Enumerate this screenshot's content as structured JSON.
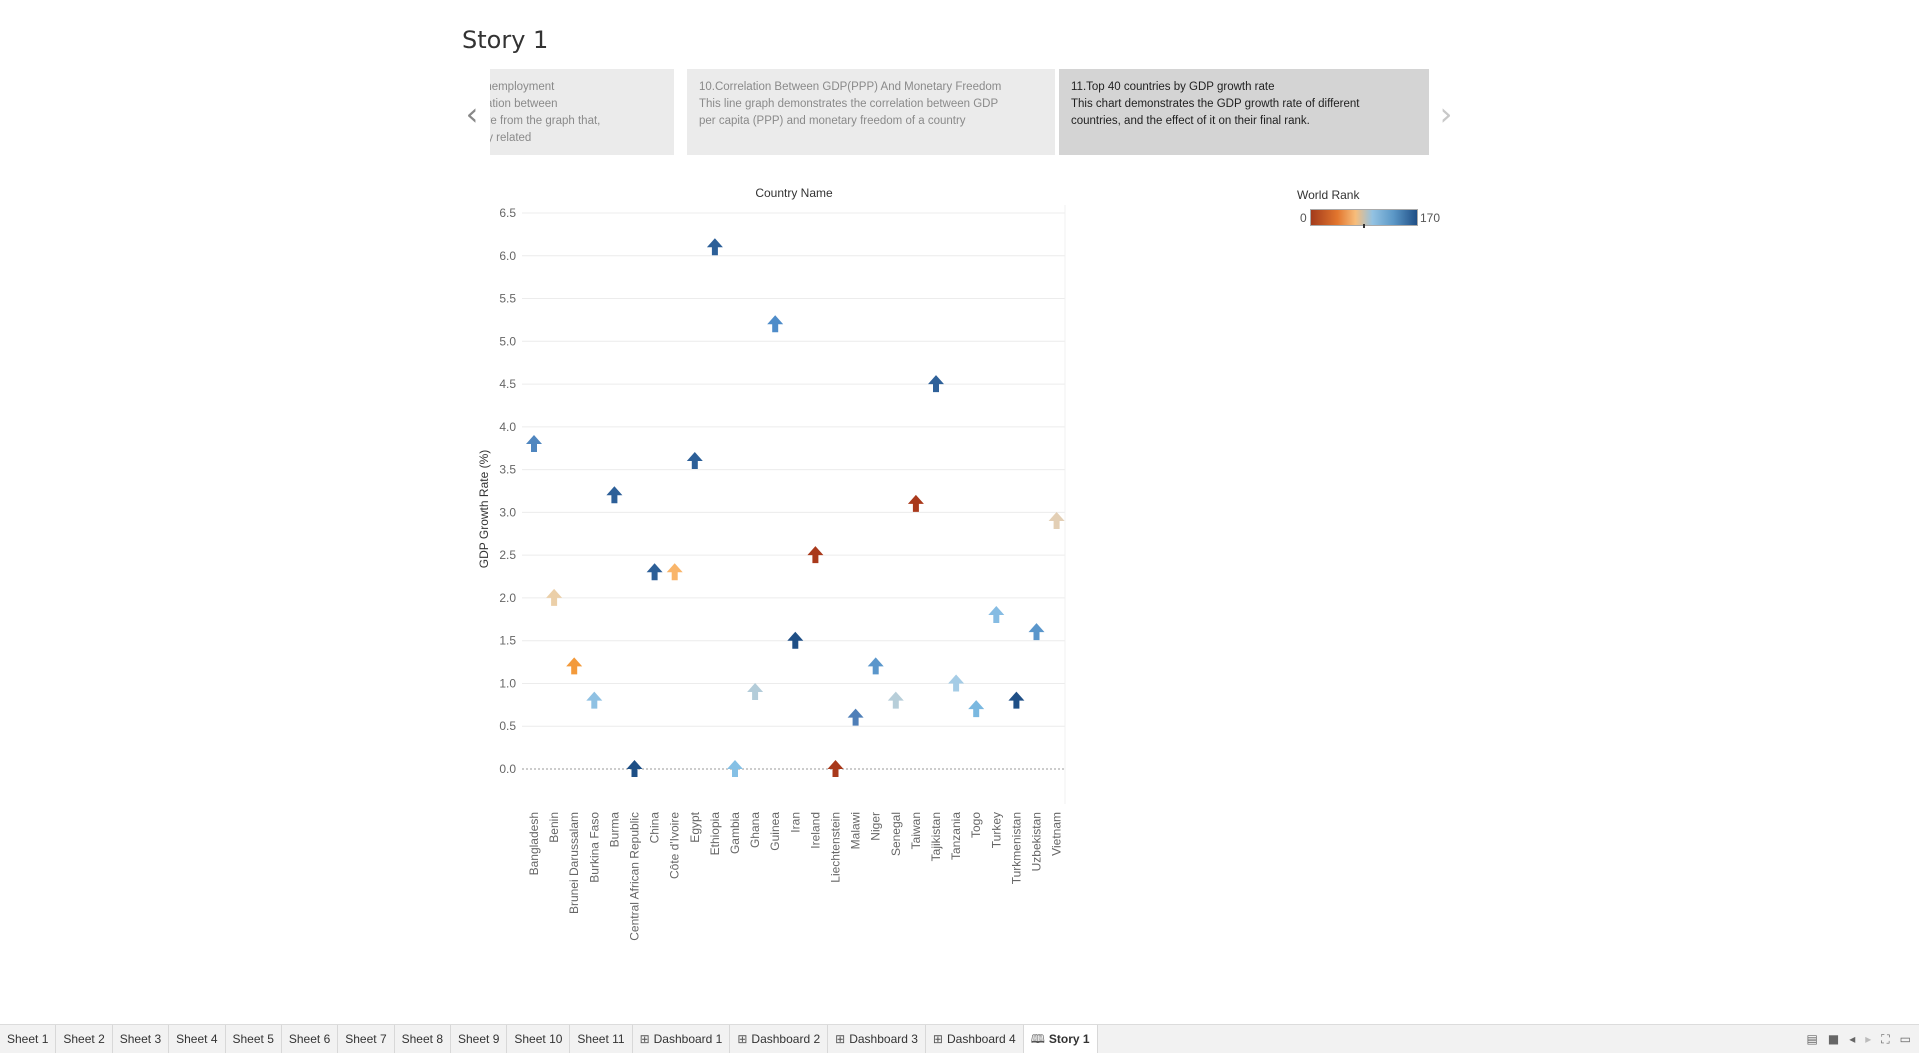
{
  "story": {
    "title": "Story 1"
  },
  "navigation": {
    "prev_icon": "chevron-left-icon",
    "next_icon": "chevron-right-icon"
  },
  "story_points": [
    {
      "lines": [
        "on And Unemployment",
        " the correlation between",
        " we observe from the graph that,",
        "are closely related"
      ]
    },
    {
      "lines": [
        "10.Correlation Between GDP(PPP) And Monetary Freedom",
        "This line graph demonstrates the correlation between GDP",
        "per capita (PPP) and monetary freedom of a country"
      ]
    },
    {
      "lines": [
        "11.Top 40 countries by GDP growth rate",
        "This chart demonstrates the GDP growth rate of different",
        "countries, and the effect of it on their final rank."
      ],
      "active": true
    }
  ],
  "legend": {
    "title": "World Rank",
    "min_label": "0",
    "max_label": "170",
    "marker_value": 85
  },
  "chart_data": {
    "type": "scatter",
    "title": "Country Name",
    "ylabel": "GDP Growth Rate (%)",
    "ylim": [
      -0.2,
      6.5
    ],
    "yticks": [
      "6.5",
      "6.0",
      "5.5",
      "5.0",
      "4.5",
      "4.0",
      "3.5",
      "3.0",
      "2.5",
      "2.0",
      "1.5",
      "1.0",
      "0.5",
      "0.0"
    ],
    "ytick_values": [
      6.5,
      6.0,
      5.5,
      5.0,
      4.5,
      4.0,
      3.5,
      3.0,
      2.5,
      2.0,
      1.5,
      1.0,
      0.5,
      0.0
    ],
    "categories": [
      "Bangladesh",
      "Benin",
      "Brunei Darussalam",
      "Burkina Faso",
      "Burma",
      "Central African Republic",
      "China",
      "Côte d'Ivoire",
      "Egypt",
      "Ethiopia",
      "Gambia",
      "Ghana",
      "Guinea",
      "Iran",
      "Ireland",
      "Liechtenstein",
      "Malawi",
      "Niger",
      "Senegal",
      "Taiwan",
      "Tajikistan",
      "Tanzania",
      "Togo",
      "Turkey",
      "Turkmenistan",
      "Uzbekistan",
      "Vietnam"
    ],
    "values": [
      3.8,
      2.0,
      1.2,
      0.8,
      3.2,
      0.0,
      2.3,
      2.3,
      3.6,
      6.1,
      0.0,
      0.9,
      5.2,
      1.5,
      2.5,
      0.0,
      0.6,
      1.2,
      0.8,
      3.1,
      4.5,
      1.0,
      0.7,
      1.8,
      0.8,
      1.6,
      2.9
    ],
    "colors": [
      "#4f86bf",
      "#ebcfa8",
      "#f39a3b",
      "#8fc1e3",
      "#2c5f98",
      "#1d4f86",
      "#2c5f98",
      "#f9b56a",
      "#2c5f98",
      "#2c5f98",
      "#85c0e5",
      "#b3ccd9",
      "#4e8cc9",
      "#1f4f86",
      "#a9391b",
      "#a9391b",
      "#4f7fb8",
      "#5a96cb",
      "#b7ced9",
      "#a9391b",
      "#2f6199",
      "#a5cce6",
      "#7ab8e0",
      "#86bce3",
      "#1f4f86",
      "#5a96cb",
      "#e3cfb5"
    ],
    "marker": "arrow-up",
    "grid": true,
    "zero_line": "dotted"
  },
  "tabs": [
    {
      "label": "Sheet 1",
      "icon": ""
    },
    {
      "label": "Sheet 2",
      "icon": ""
    },
    {
      "label": "Sheet 3",
      "icon": ""
    },
    {
      "label": "Sheet 4",
      "icon": ""
    },
    {
      "label": "Sheet 5",
      "icon": ""
    },
    {
      "label": "Sheet 6",
      "icon": ""
    },
    {
      "label": "Sheet 7",
      "icon": ""
    },
    {
      "label": "Sheet 8",
      "icon": ""
    },
    {
      "label": "Sheet 9",
      "icon": ""
    },
    {
      "label": "Sheet 10",
      "icon": ""
    },
    {
      "label": "Sheet 11",
      "icon": ""
    },
    {
      "label": "Dashboard 1",
      "icon": "dashboard-icon"
    },
    {
      "label": "Dashboard 2",
      "icon": "dashboard-icon"
    },
    {
      "label": "Dashboard 3",
      "icon": "dashboard-icon"
    },
    {
      "label": "Dashboard 4",
      "icon": "dashboard-icon"
    },
    {
      "label": "Story 1",
      "icon": "story-icon",
      "active": true
    }
  ],
  "tab_controls": [
    "show-filmstrip-icon",
    "show-sheet-sorter-icon",
    "scroll-left-icon",
    "scroll-right-icon",
    "fullscreen-icon",
    "presentation-icon"
  ]
}
